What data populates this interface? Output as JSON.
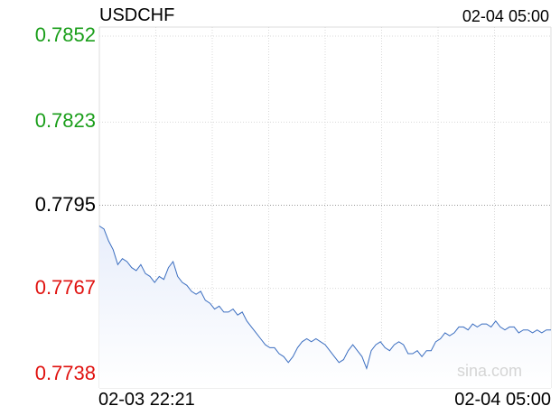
{
  "chart_data": {
    "type": "area",
    "title": "USDCHF",
    "timestamp": "02-04 05:00",
    "xlabel": "",
    "ylabel": "",
    "x_start_label": "02-03 22:21",
    "x_end_label": "02-04 05:00",
    "ylim": [
      0.7738,
      0.7852
    ],
    "reference_value": 0.7795,
    "y_ticks": [
      {
        "label": "0.7852",
        "value": 0.7852,
        "trend": "up"
      },
      {
        "label": "0.7823",
        "value": 0.7823,
        "trend": "up"
      },
      {
        "label": "0.7795",
        "value": 0.7795,
        "trend": "flat"
      },
      {
        "label": "0.7767",
        "value": 0.7767,
        "trend": "down"
      },
      {
        "label": "0.7738",
        "value": 0.7738,
        "trend": "down"
      }
    ],
    "series": [
      {
        "values": [
          0.7788,
          0.7787,
          0.7783,
          0.778,
          0.7775,
          0.7777,
          0.7776,
          0.7774,
          0.7773,
          0.7775,
          0.7772,
          0.7771,
          0.7769,
          0.7771,
          0.777,
          0.7774,
          0.7776,
          0.7771,
          0.7769,
          0.7768,
          0.7766,
          0.7765,
          0.7766,
          0.7763,
          0.7762,
          0.776,
          0.7761,
          0.7759,
          0.7759,
          0.776,
          0.7758,
          0.7759,
          0.7756,
          0.7754,
          0.7752,
          0.775,
          0.7748,
          0.7747,
          0.7747,
          0.7745,
          0.7744,
          0.7742,
          0.7744,
          0.7747,
          0.7749,
          0.775,
          0.7749,
          0.775,
          0.7749,
          0.7748,
          0.7746,
          0.7744,
          0.7742,
          0.7743,
          0.7746,
          0.7748,
          0.7746,
          0.7744,
          0.774,
          0.7746,
          0.7748,
          0.7749,
          0.7747,
          0.7746,
          0.7748,
          0.7749,
          0.7748,
          0.7745,
          0.7745,
          0.7746,
          0.7744,
          0.7746,
          0.7746,
          0.7749,
          0.775,
          0.7752,
          0.7751,
          0.7752,
          0.7754,
          0.7754,
          0.7753,
          0.7755,
          0.7754,
          0.7755,
          0.7755,
          0.7754,
          0.7756,
          0.7754,
          0.7753,
          0.7754,
          0.7754,
          0.7752,
          0.7753,
          0.7753,
          0.7752,
          0.7753,
          0.7752,
          0.7753,
          0.7753
        ],
        "color": "#3b6ec0",
        "fill": "#eaf0fb"
      }
    ],
    "reference_line_color": "#9a9a9a",
    "grid": true,
    "watermark": "sina.com"
  }
}
